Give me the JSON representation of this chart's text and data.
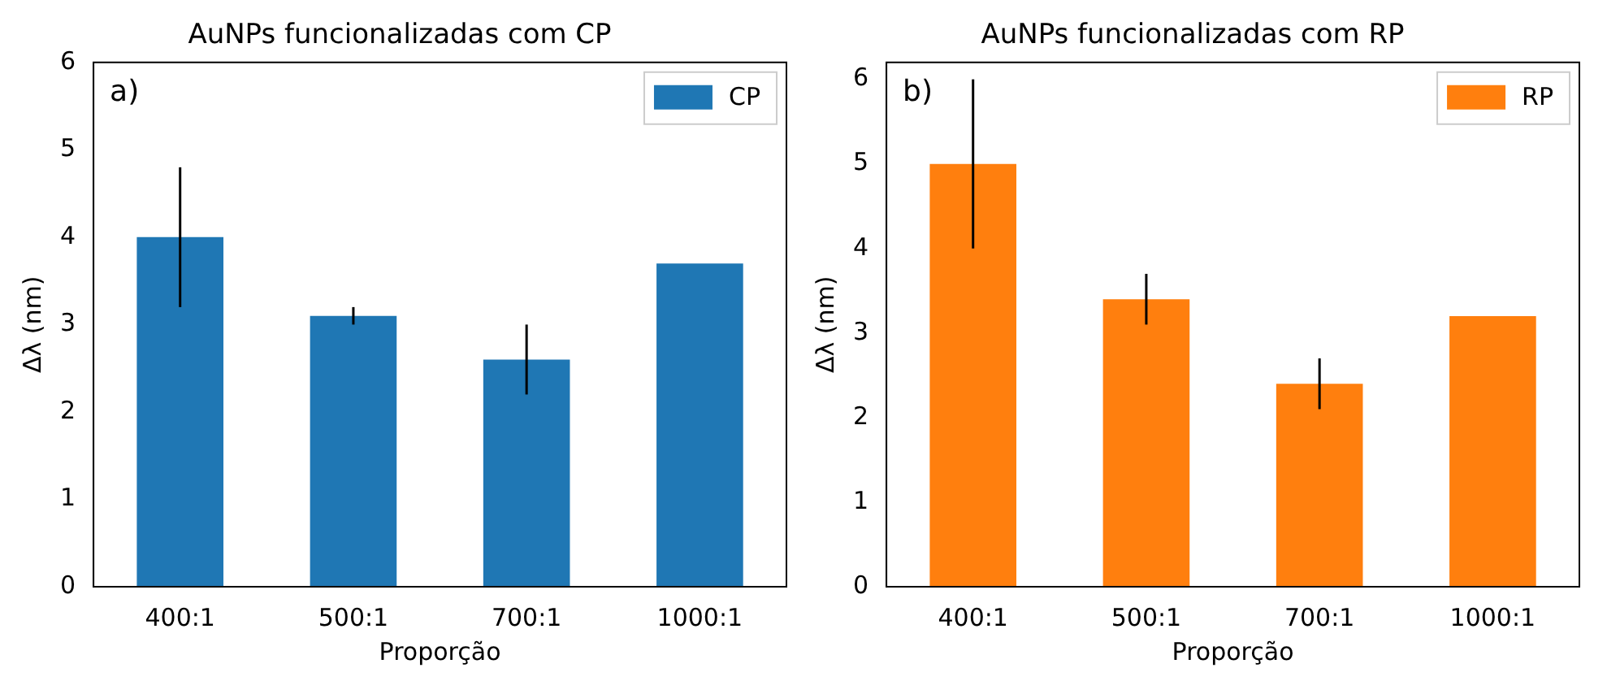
{
  "chart_data": [
    {
      "type": "bar",
      "title": "AuNPs funcionalizadas com CP",
      "xlabel": "Proporção",
      "ylabel": "Δλ (nm)",
      "categories": [
        "400:1",
        "500:1",
        "700:1",
        "1000:1"
      ],
      "series": [
        {
          "name": "CP",
          "color": "#1f77b4",
          "values": [
            4.0,
            3.1,
            2.6,
            3.7
          ],
          "errors": [
            0.8,
            0.1,
            0.4,
            null
          ]
        }
      ],
      "ylim": [
        0,
        6
      ],
      "yticks": [
        0,
        1,
        2,
        3,
        4,
        5,
        6
      ],
      "legend": "top right",
      "annotations": [
        "a)"
      ]
    },
    {
      "type": "bar",
      "title": "AuNPs funcionalizadas com RP",
      "xlabel": "Proporção",
      "ylabel": "Δλ (nm)",
      "categories": [
        "400:1",
        "500:1",
        "700:1",
        "1000:1"
      ],
      "series": [
        {
          "name": "RP",
          "color": "#ff7f0e",
          "values": [
            5.0,
            3.4,
            2.4,
            3.2
          ],
          "errors": [
            1.0,
            0.3,
            0.3,
            null
          ]
        }
      ],
      "ylim": [
        0,
        6.2
      ],
      "yticks": [
        0,
        1,
        2,
        3,
        4,
        5,
        6
      ],
      "legend": "top right",
      "annotations": [
        "b)"
      ]
    }
  ]
}
